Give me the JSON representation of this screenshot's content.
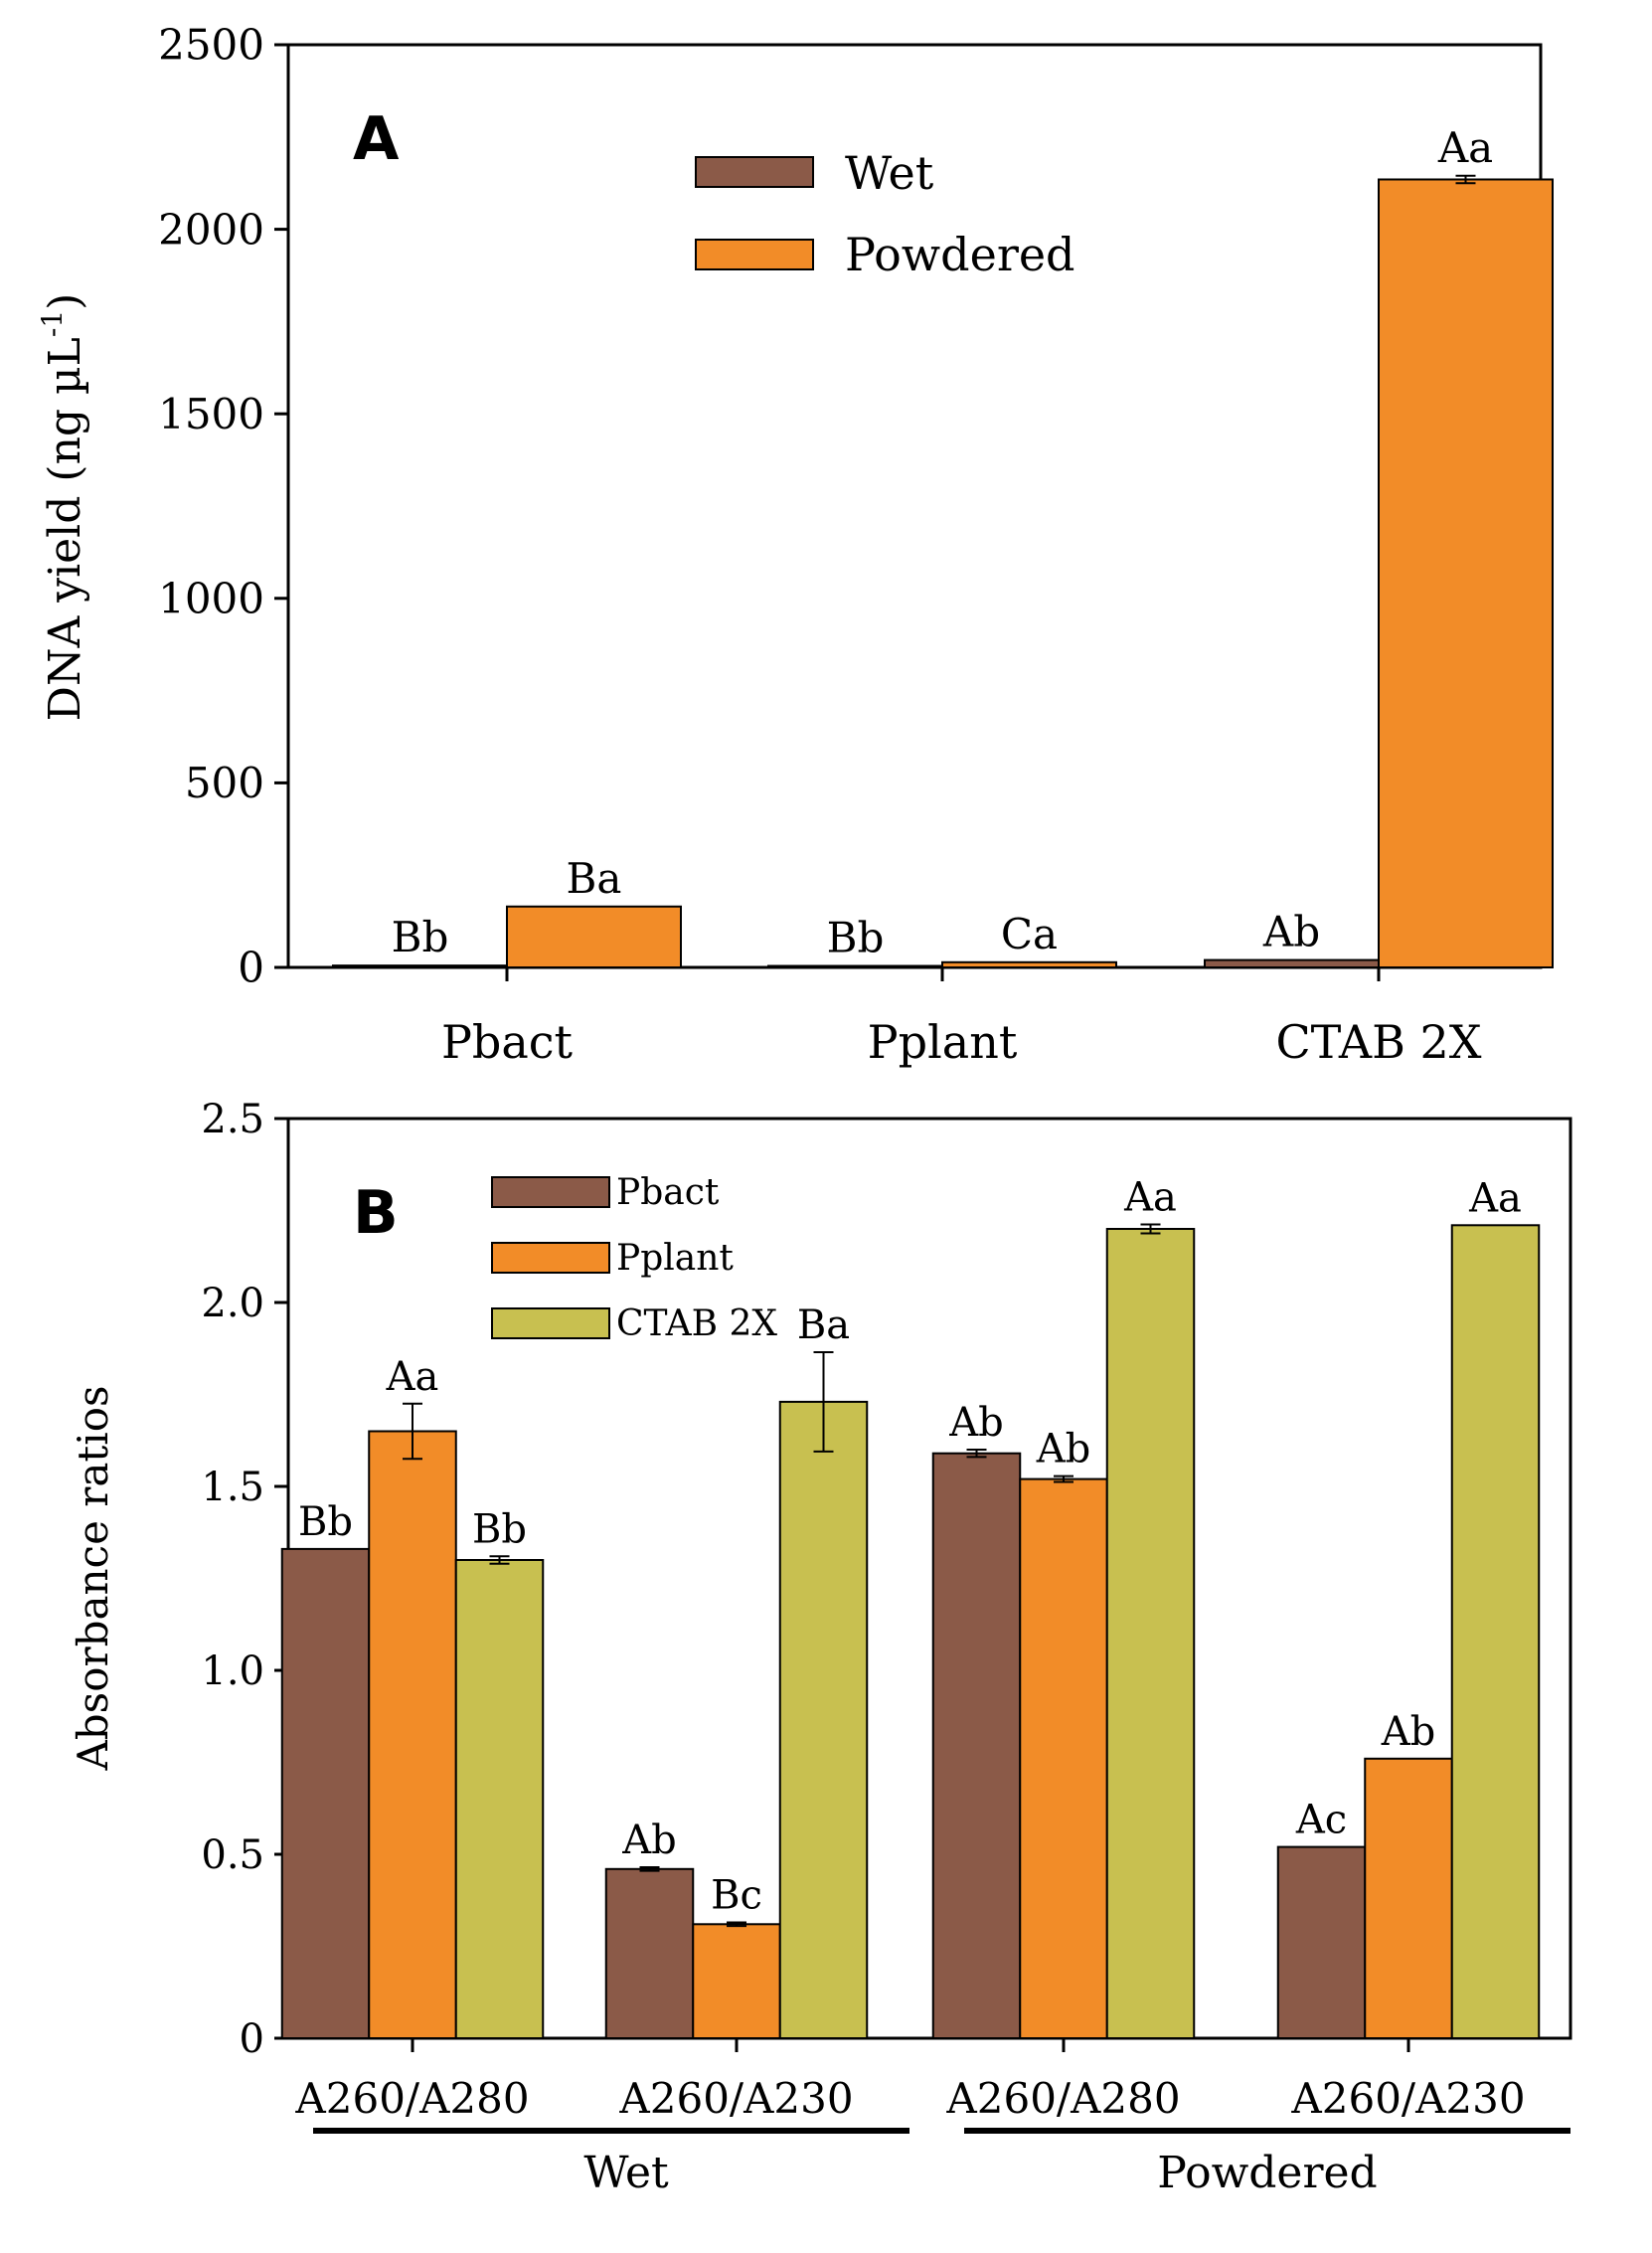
{
  "chart_data": [
    {
      "type": "bar",
      "panel": "A",
      "ylabel": "DNA yield (ng µL",
      "ylabel_sup": "-1",
      "ylabel_close": ")",
      "ylim": [
        0,
        2500
      ],
      "yticks": [
        0,
        500,
        1000,
        1500,
        2000,
        2500
      ],
      "categories": [
        "Pbact",
        "Pplant",
        "CTAB 2X"
      ],
      "legend_position": "top-center",
      "series": [
        {
          "name": "Wet",
          "color": "#8b5a48",
          "values": [
            5,
            4,
            20
          ],
          "errors": [
            0,
            0,
            0
          ],
          "labels": [
            "Bb",
            "Bb",
            "Ab"
          ]
        },
        {
          "name": "Powdered",
          "color": "#f28c28",
          "values": [
            165,
            14,
            2135
          ],
          "errors": [
            0,
            0,
            10
          ],
          "labels": [
            "Ba",
            "Ca",
            "Aa"
          ]
        }
      ]
    },
    {
      "type": "bar",
      "panel": "B",
      "ylabel": "Absorbance ratios",
      "ylim": [
        0,
        2.5
      ],
      "yticks": [
        "0",
        "0.5",
        "1.0",
        "1.5",
        "2.0",
        "2.5"
      ],
      "categories": [
        "A260/A280",
        "A260/A230",
        "A260/A280",
        "A260/A230"
      ],
      "groups": [
        {
          "label": "Wet",
          "span": [
            0,
            1
          ]
        },
        {
          "label": "Powdered",
          "span": [
            2,
            3
          ]
        }
      ],
      "legend_position": "top-left",
      "series": [
        {
          "name": "Pbact",
          "color": "#8b5a48",
          "values": [
            1.33,
            0.46,
            1.59,
            0.52
          ],
          "errors": [
            0,
            0.005,
            0.01,
            0
          ],
          "labels": [
            "Bb",
            "Ab",
            "Ab",
            "Ac"
          ]
        },
        {
          "name": "Pplant",
          "color": "#f28c28",
          "values": [
            1.65,
            0.31,
            1.52,
            0.76
          ],
          "errors": [
            0.075,
            0.005,
            0.008,
            0
          ],
          "labels": [
            "Aa",
            "Bc",
            "Ab",
            "Ab"
          ]
        },
        {
          "name": "CTAB 2X",
          "color": "#c8c050",
          "values": [
            1.3,
            1.73,
            2.2,
            2.21
          ],
          "errors": [
            0.01,
            0.135,
            0.012,
            0
          ],
          "labels": [
            "Bb",
            "Ba",
            "Aa",
            "Aa"
          ]
        }
      ]
    }
  ]
}
